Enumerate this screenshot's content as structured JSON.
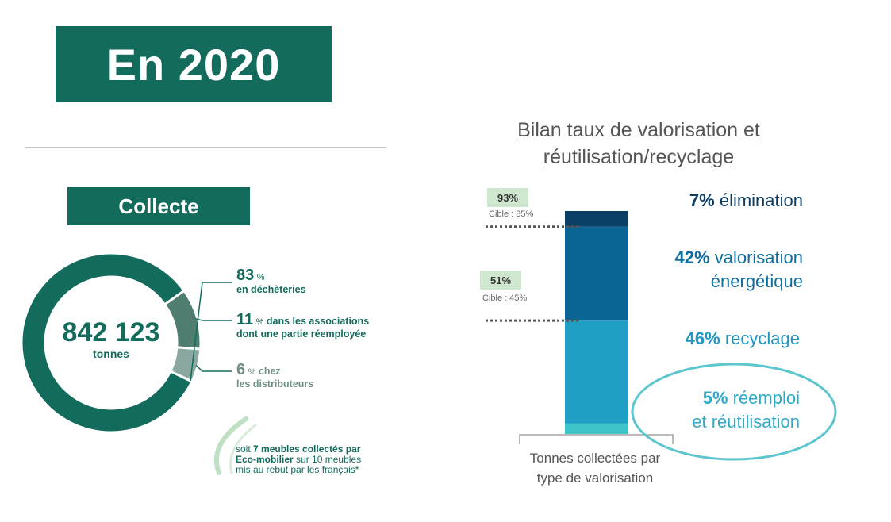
{
  "header": {
    "title": "En 2020"
  },
  "collecte": {
    "badge": "Collecte",
    "total": "842 123",
    "unit": "tonnes",
    "percent_sign": "%",
    "segments": [
      {
        "value": 83,
        "label_pre": "",
        "label": "en déchèteries",
        "color": "#136b5b"
      },
      {
        "value": 11,
        "label_pre": "dans les",
        "label": "associations dont une partie réemployée",
        "color": "#4f7d6f"
      },
      {
        "value": 6,
        "label_pre": "chez",
        "label": "les distributeurs",
        "color": "#8aa89f"
      }
    ],
    "note": {
      "prefix": "soit ",
      "bold": "7 meubles collectés par Eco-mobilier",
      "suffix": " sur 10 meubles mis au rebut par les français*"
    }
  },
  "chart_data": {
    "type": "bar",
    "stacked": true,
    "title": "Bilan taux de valorisation et réutilisation/recyclage",
    "xlabel": "Tonnes collectées par type de valorisation",
    "ylim": [
      0,
      100
    ],
    "series": [
      {
        "name": "réemploi et réutilisation",
        "value": 5,
        "pct_label": "5%",
        "text": "réemploi",
        "text2": "et réutilisation",
        "color": "#3ec5c9",
        "text_color": "#2fa9c8"
      },
      {
        "name": "recyclage",
        "value": 46,
        "pct_label": "46%",
        "text": "recyclage",
        "text2": "",
        "color": "#1f9fc4",
        "text_color": "#1f95c0"
      },
      {
        "name": "valorisation énergétique",
        "value": 42,
        "pct_label": "42%",
        "text": "valorisation",
        "text2": "énergétique",
        "color": "#0b6594",
        "text_color": "#0f6ea0"
      },
      {
        "name": "élimination",
        "value": 7,
        "pct_label": "7%",
        "text": "élimination",
        "text2": "",
        "color": "#0a3f66",
        "text_color": "#0e3d63"
      }
    ],
    "targets": [
      {
        "achieved": "93%",
        "target": "Cible  : 85%",
        "level": 93
      },
      {
        "achieved": "51%",
        "target": "Cible  : 45%",
        "level": 51
      }
    ]
  }
}
